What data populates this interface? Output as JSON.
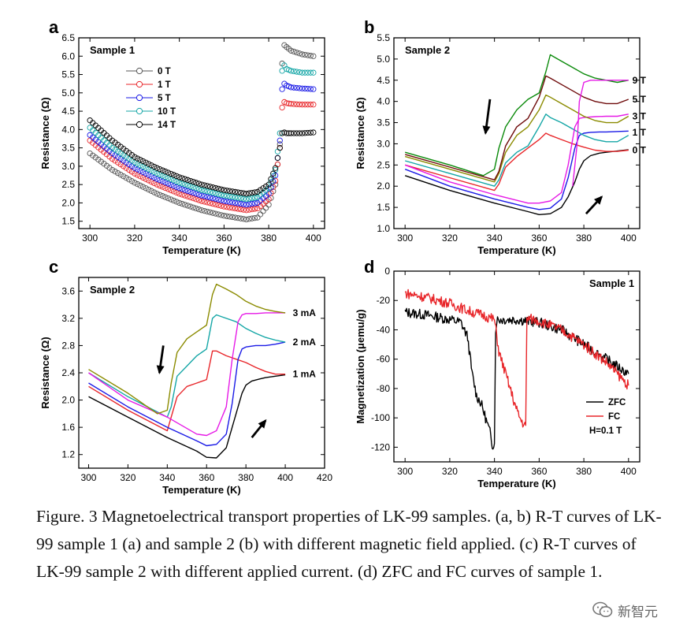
{
  "caption": "Figure. 3 Magnetoelectrical transport properties of LK-99 samples. (a, b) R-T curves of LK-99 sample 1 (a) and sample 2 (b) with different magnetic field applied. (c) R-T curves of LK-99 sample 2 with different applied current. (d) ZFC and FC curves of sample 1.",
  "watermark": "新智元",
  "colors": {
    "black": "#000000",
    "red": "#e8262a",
    "blue": "#1a1ae6",
    "cyan": "#14a6a6",
    "gray": "#555555",
    "olive": "#8b8b00",
    "magenta": "#e619e6",
    "green": "#0a8a0a",
    "maroon": "#6e0a0a"
  },
  "chart_data": [
    {
      "panel": "a",
      "type": "scatter",
      "title": "Sample 1",
      "xlabel": "Temperature (K)",
      "ylabel": "Resistance (Ω)",
      "xlim": [
        295,
        405
      ],
      "ylim": [
        1.3,
        6.5
      ],
      "xticks": [
        300,
        320,
        340,
        360,
        380,
        400
      ],
      "yticks": [
        1.5,
        2.0,
        2.5,
        3.0,
        3.5,
        4.0,
        4.5,
        5.0,
        5.5,
        6.0,
        6.5
      ],
      "legend_position": "top-left",
      "series": [
        {
          "name": "0 T",
          "color": "gray",
          "x": [
            300,
            310,
            320,
            330,
            340,
            350,
            360,
            370,
            375,
            380,
            383,
            385,
            386,
            387,
            388,
            390,
            395,
            400
          ],
          "y": [
            3.35,
            2.9,
            2.55,
            2.25,
            2.0,
            1.8,
            1.65,
            1.55,
            1.6,
            1.95,
            2.5,
            3.6,
            5.8,
            6.3,
            6.25,
            6.15,
            6.05,
            6.0
          ]
        },
        {
          "name": "1 T",
          "color": "red",
          "x": [
            300,
            310,
            320,
            330,
            340,
            350,
            360,
            370,
            375,
            380,
            383,
            385,
            386,
            387,
            388,
            390,
            395,
            400
          ],
          "y": [
            3.7,
            3.2,
            2.8,
            2.5,
            2.25,
            2.05,
            1.9,
            1.8,
            1.85,
            2.1,
            2.6,
            3.5,
            4.6,
            4.75,
            4.72,
            4.7,
            4.68,
            4.68
          ]
        },
        {
          "name": "5 T",
          "color": "blue",
          "x": [
            300,
            310,
            320,
            330,
            340,
            350,
            360,
            370,
            375,
            380,
            383,
            385,
            386,
            387,
            388,
            390,
            395,
            400
          ],
          "y": [
            3.85,
            3.35,
            2.95,
            2.65,
            2.4,
            2.2,
            2.05,
            1.95,
            2.0,
            2.25,
            2.75,
            3.7,
            5.1,
            5.25,
            5.2,
            5.15,
            5.12,
            5.1
          ]
        },
        {
          "name": "10 T",
          "color": "cyan",
          "x": [
            300,
            310,
            320,
            330,
            340,
            350,
            360,
            370,
            375,
            380,
            383,
            385,
            386,
            387,
            388,
            390,
            395,
            400
          ],
          "y": [
            4.05,
            3.5,
            3.1,
            2.8,
            2.55,
            2.35,
            2.2,
            2.1,
            2.15,
            2.4,
            2.9,
            3.9,
            5.6,
            5.75,
            5.65,
            5.6,
            5.55,
            5.55
          ]
        },
        {
          "name": "14 T",
          "color": "black",
          "x": [
            300,
            310,
            320,
            330,
            340,
            350,
            360,
            370,
            375,
            380,
            383,
            385,
            386,
            387,
            388,
            390,
            395,
            400
          ],
          "y": [
            4.25,
            3.7,
            3.25,
            2.95,
            2.7,
            2.5,
            2.35,
            2.25,
            2.3,
            2.5,
            2.95,
            3.5,
            3.9,
            3.92,
            3.9,
            3.9,
            3.9,
            3.92
          ]
        }
      ]
    },
    {
      "panel": "b",
      "type": "line",
      "title": "Sample 2",
      "xlabel": "Temperature (K)",
      "ylabel": "Resistance (Ω)",
      "xlim": [
        295,
        405
      ],
      "ylim": [
        1.0,
        5.5
      ],
      "xticks": [
        300,
        320,
        340,
        360,
        380,
        400
      ],
      "yticks": [
        1.0,
        1.5,
        2.0,
        2.5,
        3.0,
        3.5,
        4.0,
        4.5,
        5.0,
        5.5
      ],
      "annotations": [
        {
          "text": "9 T",
          "x": 401,
          "y": 4.5
        },
        {
          "text": "5 T",
          "x": 401,
          "y": 4.05
        },
        {
          "text": "3 T",
          "x": 401,
          "y": 3.65
        },
        {
          "text": "1 T",
          "x": 401,
          "y": 3.27
        },
        {
          "text": "0 T",
          "x": 401,
          "y": 2.85
        }
      ],
      "series": [
        {
          "color": "black",
          "x": [
            300,
            320,
            340,
            355,
            360,
            365,
            370,
            373,
            376,
            378,
            380,
            383,
            387,
            390,
            395,
            400
          ],
          "y": [
            2.25,
            1.9,
            1.6,
            1.4,
            1.33,
            1.35,
            1.5,
            1.75,
            2.1,
            2.4,
            2.6,
            2.72,
            2.78,
            2.8,
            2.83,
            2.86
          ]
        },
        {
          "color": "red",
          "x": [
            300,
            320,
            340,
            342,
            345,
            350,
            355,
            360,
            363,
            365,
            370,
            375,
            380,
            385,
            390,
            395,
            400
          ],
          "y": [
            2.5,
            2.2,
            1.9,
            2.05,
            2.45,
            2.7,
            2.9,
            3.1,
            3.25,
            3.2,
            3.1,
            3.0,
            2.92,
            2.85,
            2.82,
            2.82,
            2.85
          ]
        },
        {
          "color": "blue",
          "x": [
            300,
            320,
            340,
            355,
            360,
            365,
            370,
            373,
            376,
            378,
            380,
            383,
            387,
            390,
            400
          ],
          "y": [
            2.4,
            2.0,
            1.7,
            1.5,
            1.45,
            1.48,
            1.7,
            2.2,
            2.9,
            3.2,
            3.25,
            3.27,
            3.28,
            3.28,
            3.3
          ]
        },
        {
          "color": "cyan",
          "x": [
            300,
            320,
            340,
            342,
            345,
            350,
            355,
            360,
            363,
            365,
            370,
            375,
            380,
            385,
            390,
            395,
            400
          ],
          "y": [
            2.6,
            2.3,
            2.0,
            2.15,
            2.55,
            2.8,
            2.95,
            3.4,
            3.7,
            3.62,
            3.5,
            3.35,
            3.2,
            3.1,
            3.05,
            3.05,
            3.2
          ]
        },
        {
          "color": "magenta",
          "x": [
            300,
            320,
            340,
            355,
            360,
            365,
            370,
            373,
            376,
            378,
            380,
            385,
            390,
            395,
            400
          ],
          "y": [
            2.5,
            2.1,
            1.8,
            1.6,
            1.6,
            1.65,
            1.85,
            2.5,
            3.4,
            3.6,
            3.62,
            3.64,
            3.65,
            3.65,
            3.7
          ]
        },
        {
          "color": "olive",
          "x": [
            300,
            320,
            340,
            342,
            345,
            350,
            355,
            360,
            363,
            365,
            370,
            375,
            380,
            385,
            390,
            395,
            400
          ],
          "y": [
            2.7,
            2.4,
            2.1,
            2.3,
            2.8,
            3.2,
            3.4,
            3.8,
            4.15,
            4.1,
            3.95,
            3.8,
            3.65,
            3.55,
            3.5,
            3.5,
            3.65
          ]
        },
        {
          "color": "maroon",
          "x": [
            300,
            320,
            340,
            342,
            345,
            350,
            355,
            360,
            363,
            365,
            370,
            375,
            380,
            385,
            390,
            395,
            400
          ],
          "y": [
            2.75,
            2.45,
            2.15,
            2.35,
            2.95,
            3.4,
            3.6,
            4.1,
            4.6,
            4.55,
            4.4,
            4.25,
            4.1,
            4.0,
            3.95,
            3.95,
            4.05
          ]
        },
        {
          "color": "green",
          "x": [
            300,
            320,
            335,
            340,
            342,
            345,
            350,
            355,
            360,
            363,
            365,
            370,
            375,
            380,
            385,
            390,
            395,
            400
          ],
          "y": [
            2.8,
            2.5,
            2.25,
            2.4,
            2.9,
            3.4,
            3.8,
            4.05,
            4.2,
            4.7,
            5.1,
            4.95,
            4.8,
            4.65,
            4.55,
            4.5,
            4.45,
            4.5
          ]
        },
        {
          "color": "magenta",
          "x": [
            375,
            377,
            378,
            380,
            383,
            387,
            390,
            395,
            400
          ],
          "y": [
            2.0,
            3.0,
            4.0,
            4.45,
            4.5,
            4.5,
            4.5,
            4.5,
            4.5
          ]
        }
      ]
    },
    {
      "panel": "c",
      "type": "line",
      "title": "Sample 2",
      "xlabel": "Temperature (K)",
      "ylabel": "Resistance (Ω)",
      "xlim": [
        295,
        420
      ],
      "ylim": [
        1.0,
        3.8
      ],
      "xticks": [
        300,
        320,
        340,
        360,
        380,
        400,
        420
      ],
      "yticks": [
        1.2,
        1.6,
        2.0,
        2.4,
        2.8,
        3.2,
        3.6
      ],
      "annotations": [
        {
          "text": "3 mA",
          "x": 403,
          "y": 3.28
        },
        {
          "text": "2 mA",
          "x": 403,
          "y": 2.85
        },
        {
          "text": "1 mA",
          "x": 403,
          "y": 2.38
        }
      ],
      "series": [
        {
          "color": "black",
          "x": [
            300,
            320,
            340,
            355,
            360,
            365,
            370,
            373,
            376,
            378,
            380,
            383,
            387,
            390,
            395,
            400
          ],
          "y": [
            2.05,
            1.75,
            1.45,
            1.25,
            1.16,
            1.15,
            1.3,
            1.6,
            1.9,
            2.1,
            2.22,
            2.28,
            2.31,
            2.33,
            2.35,
            2.37
          ]
        },
        {
          "color": "red",
          "x": [
            300,
            320,
            340,
            342,
            345,
            350,
            355,
            360,
            363,
            365,
            370,
            375,
            380,
            385,
            390,
            395,
            400
          ],
          "y": [
            2.2,
            1.85,
            1.55,
            1.75,
            2.05,
            2.2,
            2.25,
            2.3,
            2.72,
            2.72,
            2.65,
            2.6,
            2.55,
            2.48,
            2.42,
            2.38,
            2.38
          ]
        },
        {
          "color": "blue",
          "x": [
            300,
            320,
            340,
            355,
            360,
            365,
            370,
            373,
            376,
            378,
            380,
            385,
            390,
            395,
            400
          ],
          "y": [
            2.25,
            1.9,
            1.6,
            1.4,
            1.33,
            1.35,
            1.5,
            1.95,
            2.6,
            2.75,
            2.78,
            2.8,
            2.8,
            2.82,
            2.85
          ]
        },
        {
          "color": "cyan",
          "x": [
            300,
            320,
            340,
            342,
            345,
            350,
            355,
            360,
            363,
            365,
            370,
            375,
            380,
            385,
            390,
            395,
            400
          ],
          "y": [
            2.4,
            2.05,
            1.75,
            1.9,
            2.35,
            2.5,
            2.65,
            2.75,
            3.2,
            3.25,
            3.2,
            3.15,
            3.05,
            2.98,
            2.92,
            2.88,
            2.85
          ]
        },
        {
          "color": "magenta",
          "x": [
            300,
            320,
            340,
            355,
            360,
            365,
            370,
            373,
            376,
            378,
            380,
            385,
            390,
            395,
            400
          ],
          "y": [
            2.4,
            2.0,
            1.75,
            1.5,
            1.48,
            1.55,
            1.9,
            2.6,
            3.15,
            3.25,
            3.27,
            3.27,
            3.28,
            3.28,
            3.28
          ]
        },
        {
          "color": "olive",
          "x": [
            300,
            320,
            335,
            340,
            342,
            345,
            350,
            355,
            360,
            363,
            365,
            370,
            375,
            380,
            385,
            390,
            395,
            400
          ],
          "y": [
            2.45,
            2.1,
            1.8,
            1.85,
            2.25,
            2.7,
            2.9,
            3.0,
            3.1,
            3.55,
            3.7,
            3.63,
            3.55,
            3.45,
            3.38,
            3.33,
            3.3,
            3.28
          ]
        }
      ]
    },
    {
      "panel": "d",
      "type": "line",
      "title": "Sample 1",
      "xlabel": "Temperature (K)",
      "ylabel": "Magnetization (μemu/g)",
      "xlim": [
        295,
        405
      ],
      "ylim": [
        -130,
        0
      ],
      "xticks": [
        300,
        320,
        340,
        360,
        380,
        400
      ],
      "yticks": [
        0,
        -20,
        -40,
        -60,
        -80,
        -100,
        -120
      ],
      "legend_position": "bottom-right",
      "annotation": "H=0.1 T",
      "series": [
        {
          "name": "ZFC",
          "color": "black",
          "x": [
            300,
            310,
            320,
            325,
            328,
            330,
            332,
            334,
            336,
            338,
            339,
            340,
            340.5,
            341,
            345,
            350,
            360,
            370,
            380,
            390,
            400
          ],
          "y": [
            -28,
            -30,
            -33,
            -35,
            -45,
            -70,
            -85,
            -90,
            -100,
            -110,
            -118,
            -118,
            -40,
            -33,
            -33,
            -33,
            -35,
            -40,
            -50,
            -60,
            -70
          ]
        },
        {
          "name": "FC",
          "color": "red",
          "x": [
            300,
            310,
            320,
            330,
            335,
            340,
            342,
            345,
            348,
            350,
            352,
            354,
            354.5,
            355,
            360,
            370,
            380,
            390,
            400
          ],
          "y": [
            -15,
            -18,
            -22,
            -28,
            -30,
            -33,
            -55,
            -70,
            -85,
            -95,
            -102,
            -106,
            -33,
            -32,
            -34,
            -40,
            -50,
            -62,
            -78
          ]
        }
      ]
    }
  ]
}
